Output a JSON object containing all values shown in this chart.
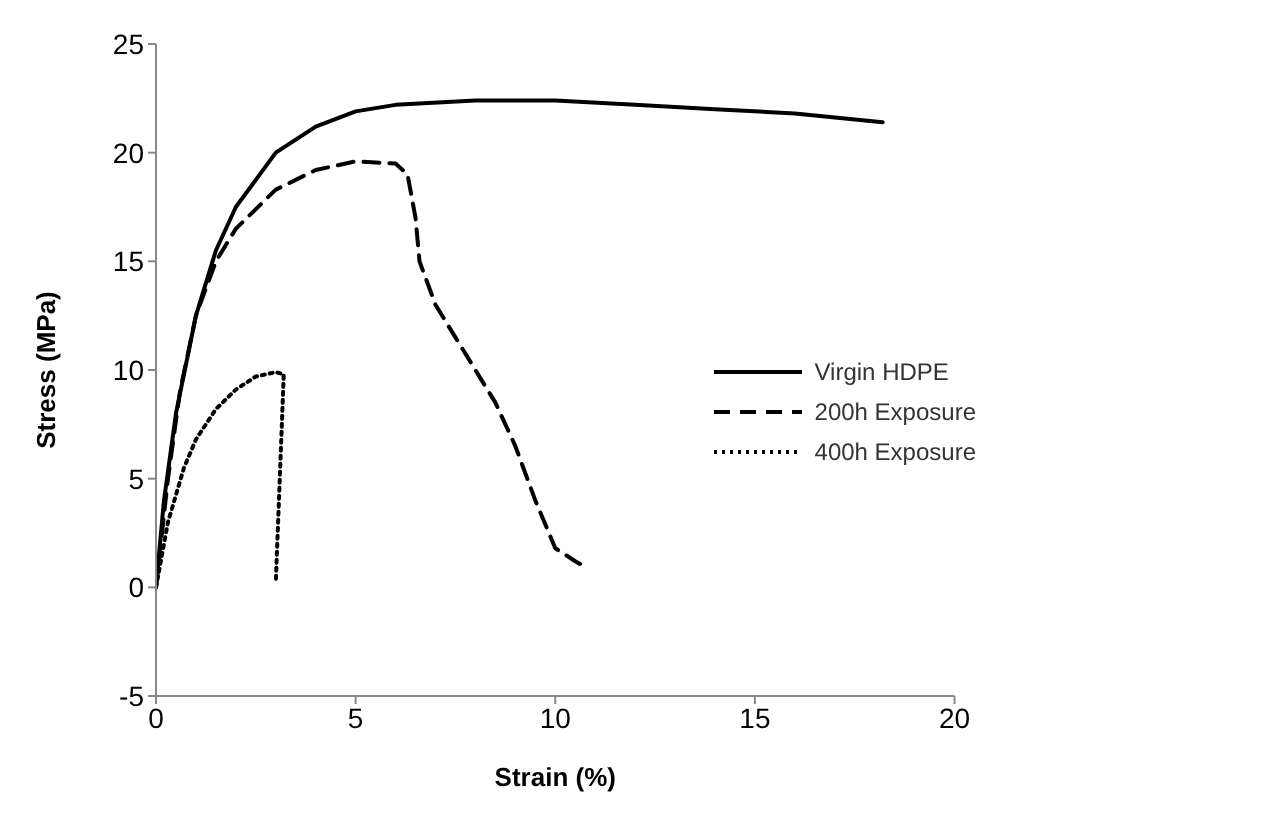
{
  "chart_data": {
    "type": "line",
    "xlabel": "Strain (%)",
    "ylabel": "Stress (MPa)",
    "xlim": [
      0,
      20
    ],
    "xticks": [
      0,
      5,
      10,
      15,
      20
    ],
    "ylim": [
      -5,
      25
    ],
    "yticks": [
      -5,
      0,
      5,
      10,
      15,
      20,
      25
    ],
    "grid": false,
    "legend": "right",
    "marker": "none",
    "series": [
      {
        "name": "Virgin HDPE",
        "color": "#000000",
        "line_style": "solid",
        "x": [
          0,
          0.2,
          0.5,
          1,
          1.5,
          2,
          3,
          4,
          5,
          6,
          8,
          10,
          12,
          14,
          16,
          18.2
        ],
        "values": [
          0,
          4,
          8,
          12.5,
          15.5,
          17.5,
          20,
          21.2,
          21.9,
          22.2,
          22.4,
          22.4,
          22.2,
          22,
          21.8,
          21.4
        ]
      },
      {
        "name": "200h Exposure",
        "color": "#000000",
        "line_style": "dashed",
        "x": [
          0,
          0.3,
          0.6,
          1,
          1.5,
          2,
          3,
          4,
          5,
          6,
          6.3,
          6.5,
          6.6,
          7,
          7.5,
          8,
          8.5,
          9,
          9.5,
          10,
          10.5,
          10.7
        ],
        "values": [
          0,
          5,
          9,
          12.5,
          15,
          16.5,
          18.3,
          19.2,
          19.6,
          19.5,
          19,
          17,
          15,
          13,
          11.5,
          10,
          8.5,
          6.5,
          4,
          1.8,
          1.2,
          1
        ]
      },
      {
        "name": "400h Exposure",
        "color": "#000000",
        "line_style": "dotted",
        "x": [
          0,
          0.3,
          0.7,
          1,
          1.5,
          2,
          2.5,
          3,
          3.2,
          3.1,
          3
        ],
        "values": [
          0,
          3,
          5.5,
          6.8,
          8.2,
          9.1,
          9.7,
          9.9,
          9.8,
          5,
          0.2
        ]
      }
    ]
  }
}
